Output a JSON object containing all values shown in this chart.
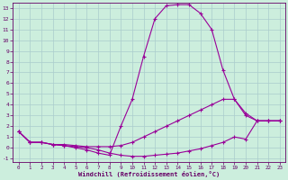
{
  "xlabel": "Windchill (Refroidissement éolien,°C)",
  "background_color": "#cceedd",
  "grid_color": "#aacccc",
  "line_color": "#990099",
  "xlim": [
    -0.5,
    23.5
  ],
  "ylim": [
    -1.3,
    13.5
  ],
  "xticks": [
    0,
    1,
    2,
    3,
    4,
    5,
    6,
    7,
    8,
    9,
    10,
    11,
    12,
    13,
    14,
    15,
    16,
    17,
    18,
    19,
    20,
    21,
    22,
    23
  ],
  "yticks": [
    -1,
    0,
    1,
    2,
    3,
    4,
    5,
    6,
    7,
    8,
    9,
    10,
    11,
    12,
    13
  ],
  "curve1_x": [
    0,
    1,
    2,
    3,
    4,
    5,
    6,
    7,
    8,
    9,
    10,
    11,
    12,
    13,
    14,
    15,
    16,
    17,
    18,
    19,
    20,
    21,
    22,
    23
  ],
  "curve1_y": [
    1.5,
    0.5,
    0.5,
    0.3,
    0.2,
    0.0,
    -0.2,
    -0.5,
    -0.7,
    2.0,
    4.5,
    8.5,
    12.0,
    13.2,
    13.3,
    13.3,
    12.5,
    11.0,
    7.2,
    4.5,
    3.0,
    2.5,
    2.5,
    2.5
  ],
  "curve2_x": [
    0,
    1,
    2,
    3,
    4,
    5,
    6,
    7,
    8,
    9,
    10,
    11,
    12,
    13,
    14,
    15,
    16,
    17,
    18,
    19,
    20,
    21,
    22,
    23
  ],
  "curve2_y": [
    1.5,
    0.5,
    0.5,
    0.3,
    0.3,
    0.2,
    0.1,
    0.1,
    0.1,
    0.2,
    0.5,
    1.0,
    1.5,
    2.0,
    2.5,
    3.0,
    3.5,
    4.0,
    4.5,
    4.5,
    3.2,
    2.5,
    2.5,
    2.5
  ],
  "curve3_x": [
    0,
    1,
    2,
    3,
    4,
    5,
    6,
    7,
    8,
    9,
    10,
    11,
    12,
    13,
    14,
    15,
    16,
    17,
    18,
    19,
    20,
    21,
    22,
    23
  ],
  "curve3_y": [
    1.5,
    0.5,
    0.5,
    0.3,
    0.2,
    0.1,
    0.0,
    -0.2,
    -0.5,
    -0.7,
    -0.8,
    -0.8,
    -0.7,
    -0.6,
    -0.5,
    -0.3,
    -0.1,
    0.2,
    0.5,
    1.0,
    0.8,
    2.5,
    2.5,
    2.5
  ]
}
